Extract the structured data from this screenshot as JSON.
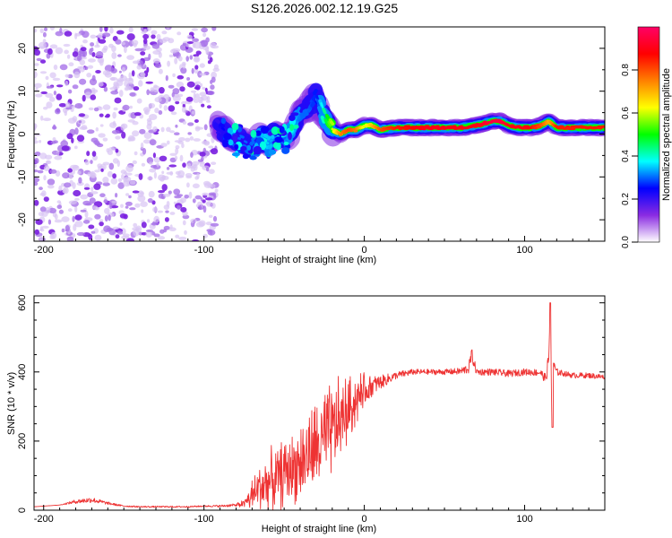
{
  "title": "S126.2026.002.12.19.G25",
  "chart_data": [
    {
      "type": "heatmap",
      "name": "spectrogram",
      "xlabel": "Height of straight line (km)",
      "ylabel": "Frequency (Hz)",
      "xlim": [
        -206,
        150
      ],
      "ylim": [
        -25,
        25
      ],
      "xticks": [
        -200,
        -100,
        0,
        100
      ],
      "yticks": [
        -20,
        -10,
        0,
        10,
        20
      ],
      "noise_region_x": [
        -206,
        -92
      ],
      "noise_region_note": "scattered low-amplitude noise (purple blobs) spanning full frequency range",
      "ridge": {
        "x": [
          -92,
          -85,
          -80,
          -75,
          -70,
          -65,
          -60,
          -55,
          -50,
          -45,
          -40,
          -35,
          -30,
          -25,
          -20,
          -15,
          -10,
          -5,
          0,
          5,
          10,
          20,
          40,
          60,
          70,
          80,
          85,
          90,
          95,
          100,
          105,
          110,
          115,
          120,
          130,
          140,
          150
        ],
        "freq": [
          2,
          0,
          -1.5,
          -2,
          -3,
          -1,
          -2,
          0,
          -1,
          1,
          5,
          6,
          9,
          4,
          1,
          0,
          1,
          1,
          2,
          2,
          1,
          1.5,
          1.5,
          1.5,
          2,
          3,
          3,
          2,
          1.5,
          1.5,
          1.5,
          2,
          3,
          1.5,
          1.5,
          1.5,
          1.5
        ],
        "amplitude": [
          0.2,
          0.3,
          0.3,
          0.3,
          0.3,
          0.35,
          0.35,
          0.3,
          0.3,
          0.35,
          0.3,
          0.3,
          0.25,
          0.45,
          0.6,
          0.75,
          0.8,
          0.75,
          0.6,
          0.7,
          0.8,
          0.85,
          0.9,
          0.9,
          0.9,
          0.95,
          0.95,
          0.9,
          0.9,
          0.9,
          0.85,
          0.8,
          0.7,
          0.85,
          0.85,
          0.85,
          0.85
        ]
      },
      "colorbar": {
        "label": "Normalized spectral amplitude",
        "range": [
          0.0,
          1.0
        ],
        "ticks": [
          "0.0",
          "0.2",
          "0.4",
          "0.6",
          "0.8"
        ],
        "colors": [
          "#ffffff",
          "#8a2be2",
          "#0000ff",
          "#00ffff",
          "#00ff00",
          "#ffff00",
          "#ff8000",
          "#ff0000",
          "#ff0066"
        ]
      }
    },
    {
      "type": "line",
      "name": "snr",
      "xlabel": "Height of straight line (km)",
      "ylabel": "SNR (10 * v/v)",
      "xlim": [
        -206,
        150
      ],
      "ylim": [
        0,
        620
      ],
      "xticks": [
        -200,
        -100,
        0,
        100
      ],
      "yticks": [
        0,
        200,
        400,
        600
      ],
      "series": [
        {
          "name": "SNR",
          "color": "#ee3333",
          "x": [
            -206,
            -190,
            -180,
            -170,
            -160,
            -150,
            -140,
            -130,
            -120,
            -110,
            -100,
            -90,
            -80,
            -75,
            -70,
            -65,
            -60,
            -55,
            -50,
            -45,
            -40,
            -35,
            -30,
            -25,
            -20,
            -15,
            -10,
            -5,
            0,
            5,
            10,
            15,
            20,
            25,
            30,
            40,
            50,
            60,
            65,
            67,
            70,
            80,
            90,
            100,
            110,
            113,
            115,
            116,
            117,
            118,
            120,
            125,
            130,
            140,
            150
          ],
          "y": [
            10,
            15,
            25,
            30,
            20,
            12,
            10,
            10,
            10,
            10,
            12,
            12,
            15,
            20,
            40,
            70,
            80,
            90,
            110,
            120,
            140,
            160,
            180,
            200,
            230,
            260,
            290,
            320,
            345,
            360,
            370,
            380,
            390,
            395,
            400,
            400,
            400,
            402,
            410,
            450,
            400,
            400,
            395,
            400,
            398,
            380,
            430,
            600,
            240,
            420,
            400,
            395,
            390,
            390,
            385
          ],
          "spike_amplitude": [
            0,
            0,
            6,
            8,
            4,
            2,
            2,
            2,
            2,
            2,
            2,
            3,
            4,
            10,
            40,
            60,
            70,
            70,
            80,
            80,
            90,
            100,
            110,
            120,
            110,
            100,
            80,
            60,
            40,
            30,
            20,
            15,
            10,
            10,
            8,
            8,
            8,
            10,
            15,
            20,
            10,
            10,
            10,
            10,
            10,
            15,
            30,
            0,
            0,
            15,
            10,
            8,
            8,
            8,
            8
          ]
        }
      ]
    }
  ]
}
